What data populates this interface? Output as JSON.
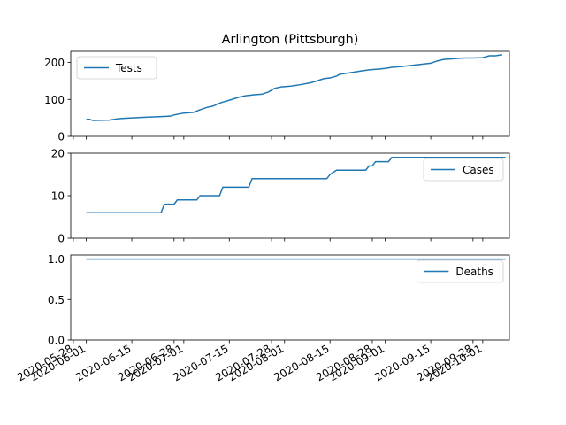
{
  "title": "Arlington (Pittsburgh)",
  "line_color": "#1f77b4",
  "chart_data": {
    "type": "line",
    "title": "Arlington (Pittsburgh)",
    "x_start": "2020-05-31",
    "x_tick_labels": [
      "2020-05-28",
      "2020-06-01",
      "2020-06-15",
      "2020-06-28",
      "2020-07-01",
      "2020-07-15",
      "2020-07-28",
      "2020-08-01",
      "2020-08-15",
      "2020-08-28",
      "2020-09-01",
      "2020-09-15",
      "2020-09-28",
      "2020-10-01"
    ],
    "panels": [
      {
        "series": [
          {
            "name": "Tests",
            "points": [
              [
                "2020-06-01",
                46
              ],
              [
                "2020-06-02",
                46
              ],
              [
                "2020-06-03",
                43
              ],
              [
                "2020-06-08",
                44
              ],
              [
                "2020-06-11",
                48
              ],
              [
                "2020-06-15",
                50
              ],
              [
                "2020-06-20",
                52
              ],
              [
                "2020-06-25",
                54
              ],
              [
                "2020-06-27",
                55
              ],
              [
                "2020-06-28",
                58
              ],
              [
                "2020-07-01",
                63
              ],
              [
                "2020-07-04",
                65
              ],
              [
                "2020-07-06",
                72
              ],
              [
                "2020-07-08",
                78
              ],
              [
                "2020-07-10",
                82
              ],
              [
                "2020-07-12",
                90
              ],
              [
                "2020-07-15",
                98
              ],
              [
                "2020-07-18",
                106
              ],
              [
                "2020-07-20",
                110
              ],
              [
                "2020-07-23",
                113
              ],
              [
                "2020-07-25",
                114
              ],
              [
                "2020-07-27",
                120
              ],
              [
                "2020-07-29",
                130
              ],
              [
                "2020-07-31",
                134
              ],
              [
                "2020-08-03",
                136
              ],
              [
                "2020-08-06",
                140
              ],
              [
                "2020-08-09",
                145
              ],
              [
                "2020-08-11",
                150
              ],
              [
                "2020-08-13",
                156
              ],
              [
                "2020-08-15",
                158
              ],
              [
                "2020-08-17",
                163
              ],
              [
                "2020-08-18",
                168
              ],
              [
                "2020-08-21",
                172
              ],
              [
                "2020-08-24",
                176
              ],
              [
                "2020-08-27",
                180
              ],
              [
                "2020-08-30",
                182
              ],
              [
                "2020-09-01",
                184
              ],
              [
                "2020-09-03",
                187
              ],
              [
                "2020-09-06",
                189
              ],
              [
                "2020-09-09",
                192
              ],
              [
                "2020-09-12",
                195
              ],
              [
                "2020-09-15",
                198
              ],
              [
                "2020-09-17",
                204
              ],
              [
                "2020-09-19",
                208
              ],
              [
                "2020-09-22",
                210
              ],
              [
                "2020-09-25",
                212
              ],
              [
                "2020-09-28",
                212
              ],
              [
                "2020-10-01",
                213
              ],
              [
                "2020-10-03",
                218
              ],
              [
                "2020-10-05",
                218
              ],
              [
                "2020-10-07",
                221
              ]
            ]
          }
        ],
        "yticks": [
          0,
          100,
          200
        ],
        "ylim": [
          0,
          230
        ],
        "legend": "upper left"
      },
      {
        "series": [
          {
            "name": "Cases",
            "points": [
              [
                "2020-06-01",
                6
              ],
              [
                "2020-06-24",
                6
              ],
              [
                "2020-06-25",
                8
              ],
              [
                "2020-06-28",
                8
              ],
              [
                "2020-06-29",
                9
              ],
              [
                "2020-07-05",
                9
              ],
              [
                "2020-07-06",
                10
              ],
              [
                "2020-07-12",
                10
              ],
              [
                "2020-07-13",
                12
              ],
              [
                "2020-07-21",
                12
              ],
              [
                "2020-07-22",
                14
              ],
              [
                "2020-08-14",
                14
              ],
              [
                "2020-08-15",
                15
              ],
              [
                "2020-08-17",
                16
              ],
              [
                "2020-08-26",
                16
              ],
              [
                "2020-08-27",
                17
              ],
              [
                "2020-08-28",
                17
              ],
              [
                "2020-08-29",
                18
              ],
              [
                "2020-09-02",
                18
              ],
              [
                "2020-09-03",
                19
              ],
              [
                "2020-10-08",
                19
              ]
            ]
          }
        ],
        "yticks": [
          0,
          10,
          20
        ],
        "ylim": [
          0,
          20
        ],
        "legend": "upper right"
      },
      {
        "series": [
          {
            "name": "Deaths",
            "points": [
              [
                "2020-06-01",
                1
              ],
              [
                "2020-10-08",
                1
              ]
            ]
          }
        ],
        "yticks": [
          0.0,
          0.5,
          1.0
        ],
        "ylim": [
          0,
          1.05
        ],
        "legend": "upper right"
      }
    ]
  }
}
